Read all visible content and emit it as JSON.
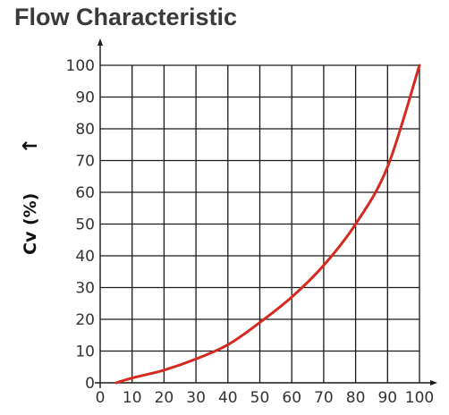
{
  "chart_data": {
    "type": "line",
    "title": "Flow Characteristic",
    "xlabel": "",
    "ylabel": "Cv (%)",
    "xlim": [
      0,
      100
    ],
    "ylim": [
      0,
      100
    ],
    "x_ticks": [
      0,
      10,
      20,
      30,
      40,
      50,
      60,
      70,
      80,
      90,
      100
    ],
    "y_ticks": [
      0,
      10,
      20,
      30,
      40,
      50,
      60,
      70,
      80,
      90,
      100
    ],
    "x_tick_labels": [
      "0",
      "10",
      "20",
      "30",
      "40",
      "50",
      "60",
      "70",
      "80",
      "90",
      "100"
    ],
    "y_tick_labels": [
      "0",
      "10",
      "20",
      "30",
      "40",
      "50",
      "60",
      "70",
      "80",
      "90",
      "100"
    ],
    "grid": true,
    "series": [
      {
        "color": "#d42a20",
        "x": [
          5,
          10,
          20,
          30,
          40,
          50,
          60,
          70,
          80,
          90,
          100
        ],
        "y": [
          0,
          1.5,
          4,
          7.5,
          12,
          19,
          27,
          37,
          50,
          68,
          100
        ]
      }
    ]
  },
  "colors": {
    "axis": "#1a1a1a",
    "grid": "#1a1a1a",
    "title": "#3a3a3a",
    "text": "#333333",
    "series": "#d42a20"
  },
  "ylabel_arrow": "↑"
}
